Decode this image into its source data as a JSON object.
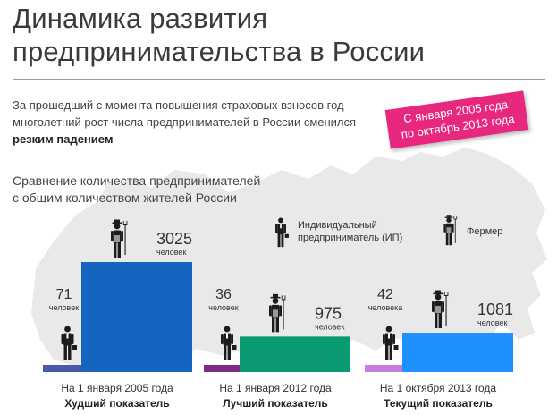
{
  "title": {
    "line1": "Динамика развития",
    "line2": "предпринимательства в России"
  },
  "lead": {
    "text": "За прошедший с момента повышения страховых взносов год многолетний рост числа предпринимателей в России сменился",
    "bold": "резким падением"
  },
  "period_badge": {
    "line1": "С января 2005 года",
    "line2": "по октябрь 2013 года"
  },
  "section_title": {
    "line1": "Сравнение количества предпринимателей",
    "line2": "с общим количеством жителей России"
  },
  "legend": {
    "ip_line1": "Индивидуальный",
    "ip_line2": "предприниматель (ИП)",
    "farmer": "Фермер"
  },
  "colors": {
    "map": "#e9e9e9",
    "figure": "#1c1c1c",
    "badge": "#e8287e"
  },
  "chart_data": {
    "type": "bar",
    "title": "Сравнение количества предпринимателей с общим количеством жителей России",
    "groups": [
      {
        "date": "На 1 января 2005 года",
        "rating": "Худший показатель",
        "farmer": {
          "value": 71,
          "unit": "человек",
          "color": "#4a5aa6"
        },
        "ip": {
          "value": 3025,
          "unit": "человек",
          "color": "#1565c0"
        }
      },
      {
        "date": "На 1 января 2012 года",
        "rating": "Лучший показатель",
        "farmer": {
          "value": 36,
          "unit": "человек",
          "color": "#7b2d83"
        },
        "ip": {
          "value": 975,
          "unit": "человек",
          "color": "#0a9a72"
        }
      },
      {
        "date": "На 1 октября 2013 года",
        "rating": "Текущий показатель",
        "farmer": {
          "value": 42,
          "unit": "человека",
          "color": "#c77ddc"
        },
        "ip": {
          "value": 1081,
          "unit": "человек",
          "color": "#1e90ff"
        }
      }
    ]
  }
}
